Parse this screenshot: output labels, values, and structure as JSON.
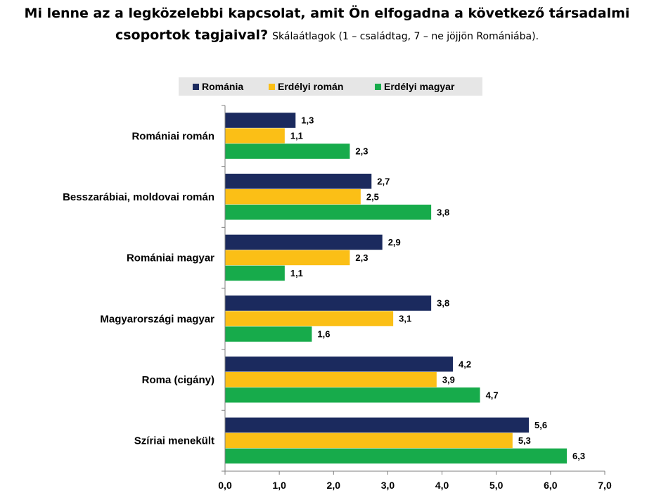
{
  "heading": {
    "line1": "Mi lenne az a legközelebbi kapcsolat, amit Ön elfogadna a következő társadalmi",
    "line2": "csoportok tagjaival?",
    "subtitle": "Skálaátlagok (1 – családtag, 7 – ne jöjjön Romániába)."
  },
  "chart_data": {
    "type": "bar",
    "orientation": "horizontal",
    "categories": [
      "Romániai román",
      "Besszarábiai, moldovai román",
      "Romániai magyar",
      "Magyarországi magyar",
      "Roma (cigány)",
      "Szíriai menekült"
    ],
    "series": [
      {
        "name": "Románia",
        "color": "#1b2a5e",
        "values": [
          1.3,
          2.7,
          2.9,
          3.8,
          4.2,
          5.6
        ]
      },
      {
        "name": "Erdélyi román",
        "color": "#fbbf16",
        "values": [
          1.1,
          2.5,
          2.3,
          3.1,
          3.9,
          5.3
        ]
      },
      {
        "name": "Erdélyi magyar",
        "color": "#17ab4b",
        "values": [
          2.3,
          3.8,
          1.1,
          1.6,
          4.7,
          6.3
        ]
      }
    ],
    "x_ticks": [
      "0,0",
      "1,0",
      "2,0",
      "3,0",
      "4,0",
      "5,0",
      "6,0",
      "7,0"
    ],
    "xlim": [
      0,
      7
    ],
    "grid": false,
    "legend_position": "top"
  }
}
